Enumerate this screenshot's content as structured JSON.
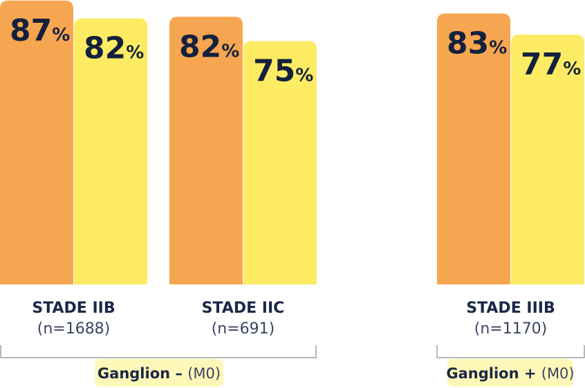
{
  "chart_data": {
    "type": "bar",
    "categories": [
      {
        "name": "STADE IIB",
        "n": "(n=1688)"
      },
      {
        "name": "STADE IIC",
        "n": "(n=691)"
      },
      {
        "name": "STADE IIIB",
        "n": "(n=1170)"
      }
    ],
    "series": [
      {
        "color": "#f6a550",
        "values": [
          87,
          82,
          83
        ]
      },
      {
        "color": "#fdeb64",
        "values": [
          82,
          75,
          77
        ]
      }
    ],
    "value_suffix": "%",
    "ylim": [
      0,
      100
    ],
    "groups": [
      {
        "bold": "Ganglion –",
        "light": "(M0)",
        "categories": [
          0,
          1
        ]
      },
      {
        "bold": "Ganglion +",
        "light": "(M0)",
        "categories": [
          2
        ]
      }
    ],
    "colors": {
      "group_label_bg": "#fff7b8",
      "bracket": "#8a8a8a",
      "text": "#14213d"
    }
  }
}
